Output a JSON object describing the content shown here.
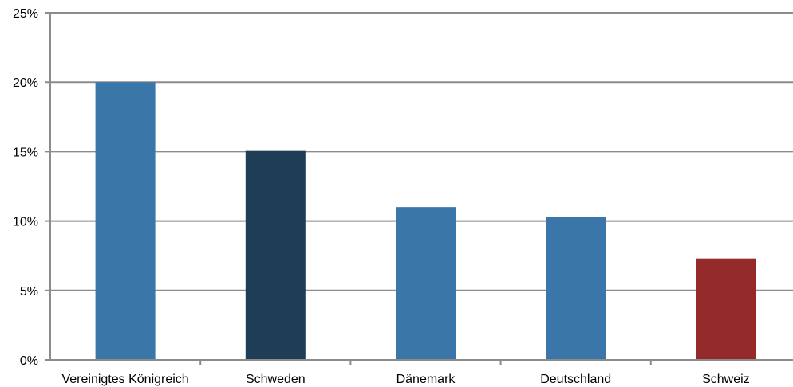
{
  "chart_data": {
    "type": "bar",
    "categories": [
      "Vereinigtes Königreich",
      "Schweden",
      "Dänemark",
      "Deutschland",
      "Schweiz"
    ],
    "values": [
      20.0,
      15.1,
      11.0,
      10.3,
      7.3
    ],
    "unit": "%",
    "ylim": [
      0,
      25
    ],
    "yticks": [
      0,
      5,
      10,
      15,
      20,
      25
    ],
    "ytick_labels": [
      "0%",
      "5%",
      "10%",
      "15%",
      "20%",
      "25%"
    ],
    "title": "",
    "xlabel": "",
    "ylabel": "",
    "grid": "horizontal",
    "bar_colors": [
      "#3A77A8",
      "#1F3D57",
      "#3A77A8",
      "#3A77A8",
      "#942A2A"
    ]
  }
}
